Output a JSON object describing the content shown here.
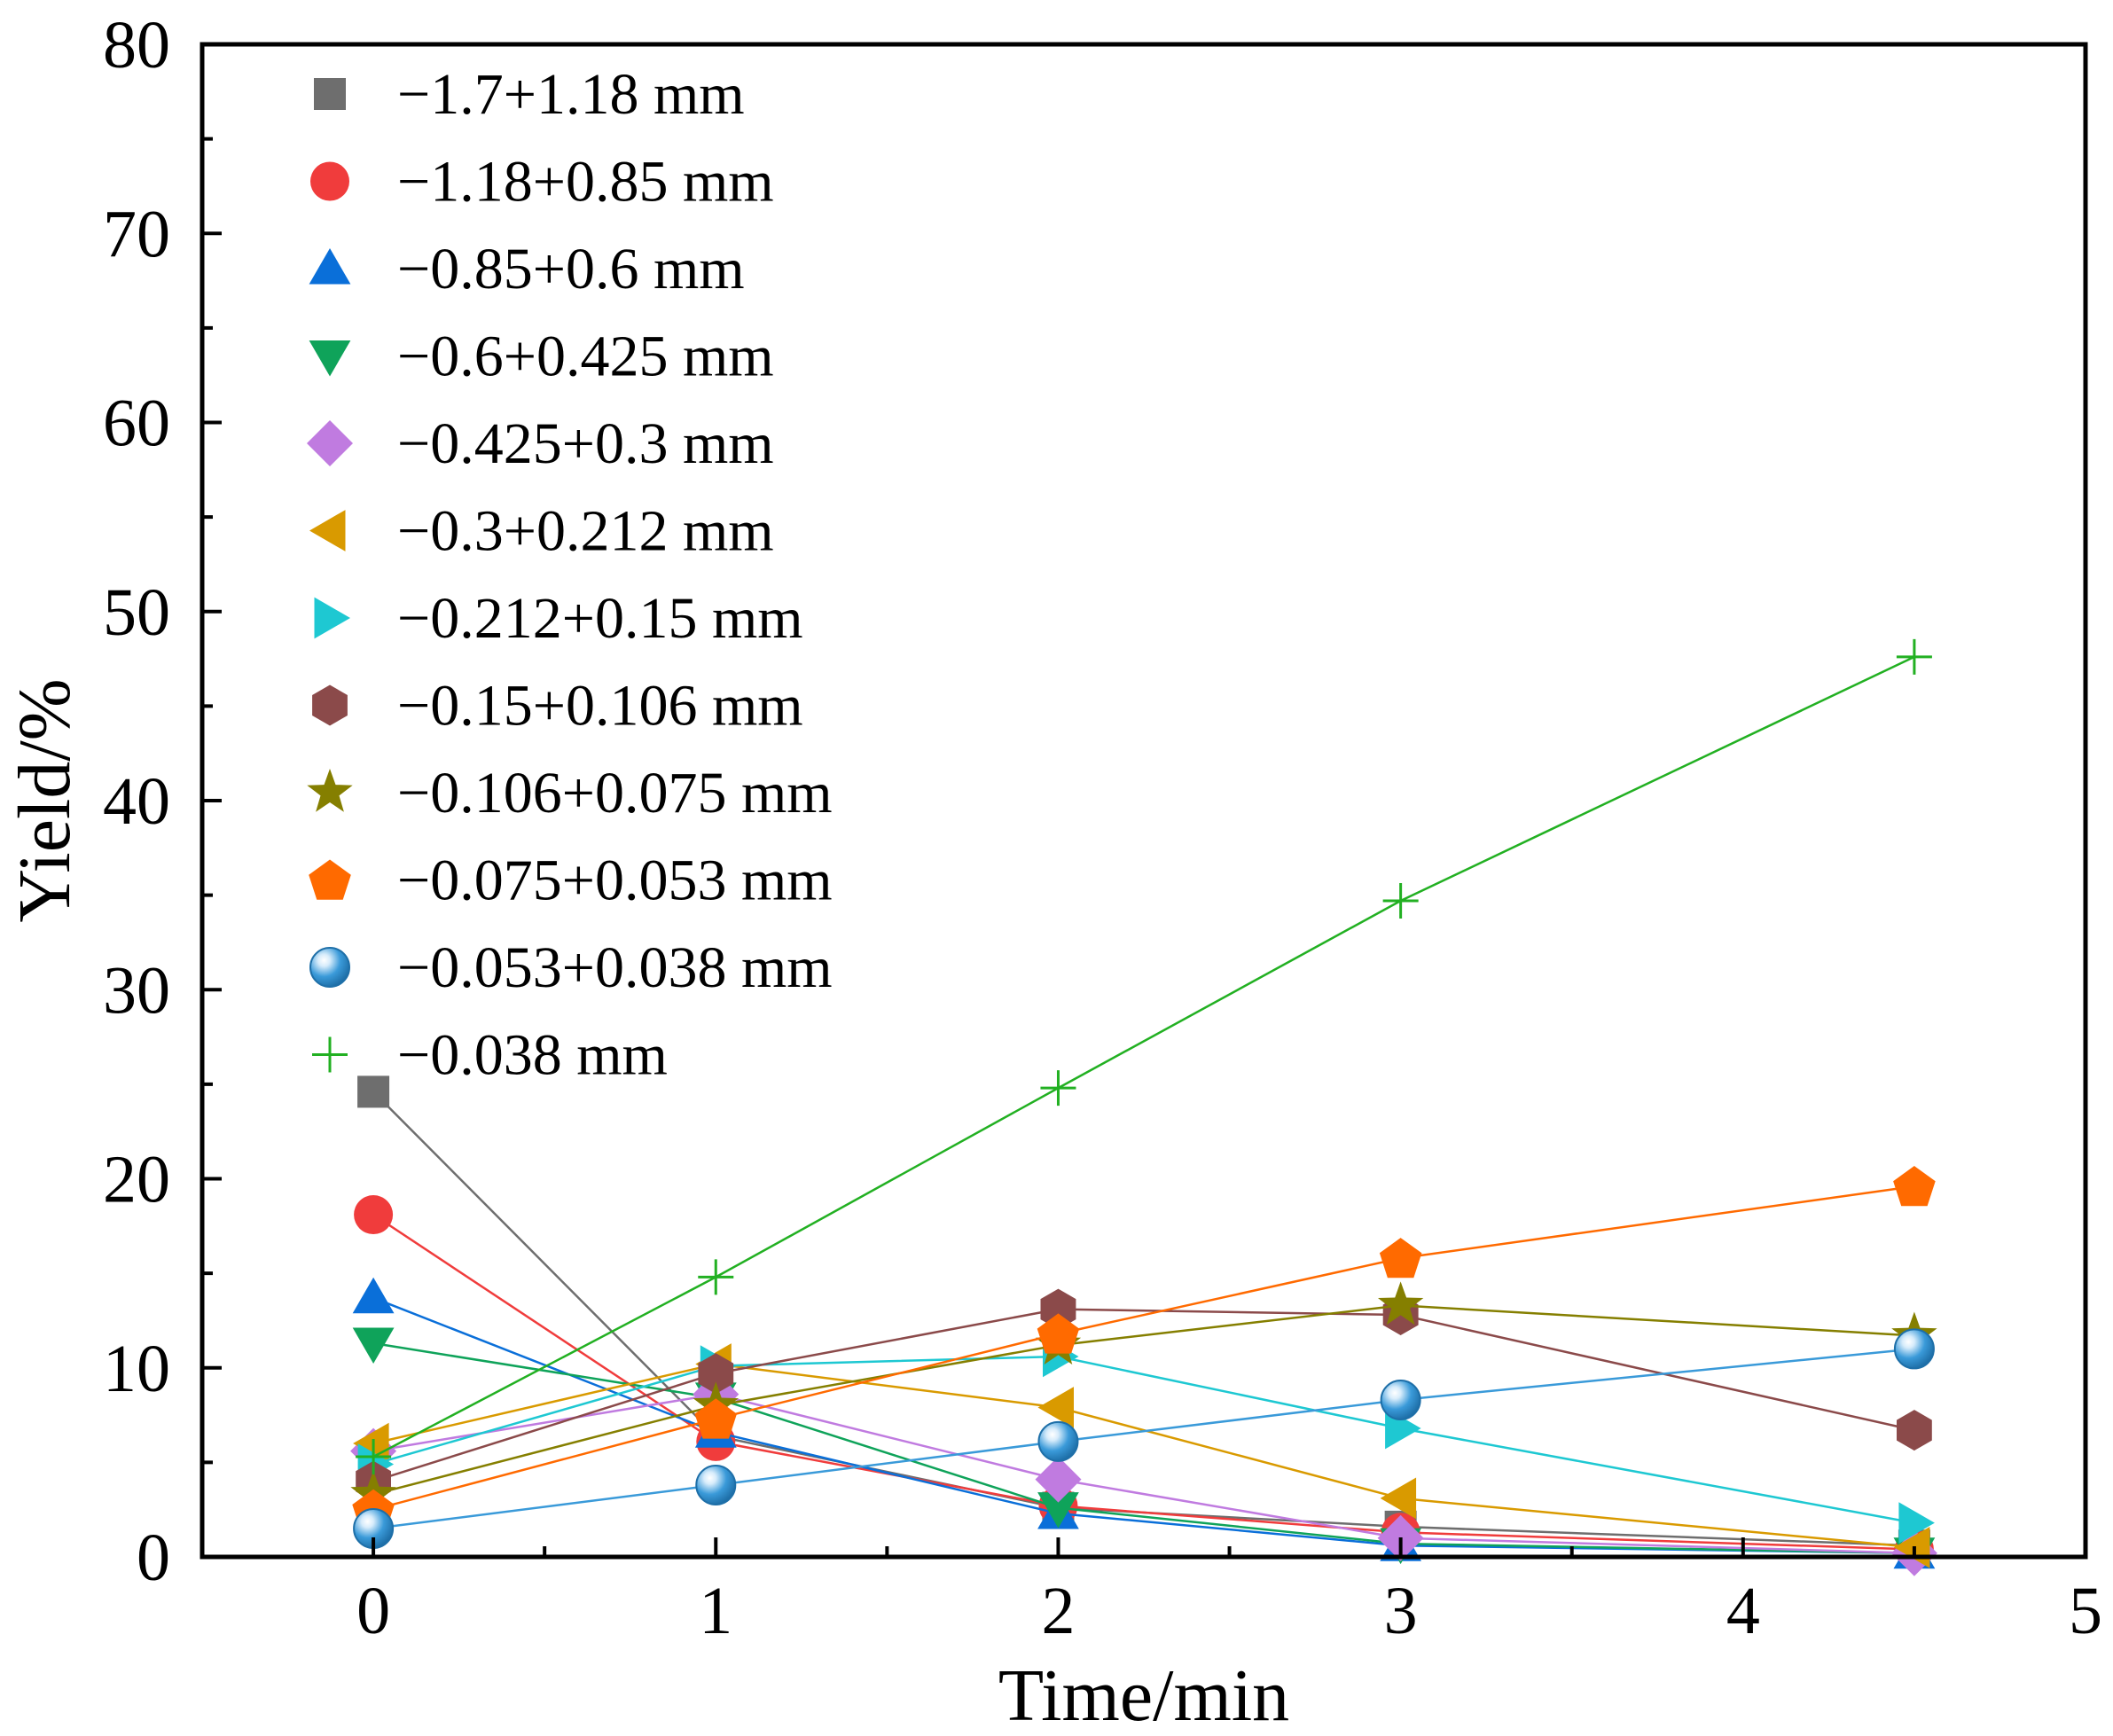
{
  "chart_data": {
    "type": "line",
    "title": "",
    "xlabel": "Time/min",
    "ylabel": "Yield/%",
    "xlim": [
      -0.5,
      5
    ],
    "ylim": [
      0,
      80
    ],
    "xticks": [
      0,
      1,
      2,
      3,
      4,
      5
    ],
    "xtick_labels": [
      "0",
      "1",
      "2",
      "3",
      "4",
      "5"
    ],
    "yticks": [
      0,
      10,
      20,
      30,
      40,
      50,
      60,
      70,
      80
    ],
    "ytick_labels": [
      "0",
      "10",
      "20",
      "30",
      "40",
      "50",
      "60",
      "70",
      "80"
    ],
    "grid": false,
    "legend_position": "top-left",
    "x": [
      0,
      1,
      2,
      3,
      4.5
    ],
    "series": [
      {
        "name": "−1.7+1.18 mm",
        "marker": "square",
        "color": "#6e6e6e",
        "values": [
          24.6,
          6.4,
          2.6,
          1.6,
          0.6
        ]
      },
      {
        "name": "−1.18+0.85 mm",
        "marker": "circle",
        "color": "#f03c3c",
        "values": [
          18.1,
          6.1,
          2.7,
          1.3,
          0.4
        ]
      },
      {
        "name": "−0.85+0.6 mm",
        "marker": "triangle-up",
        "color": "#0a6fd9",
        "values": [
          13.7,
          6.6,
          2.3,
          0.6,
          0.2
        ]
      },
      {
        "name": "−0.6+0.425 mm",
        "marker": "triangle-down",
        "color": "#0fa35a",
        "values": [
          11.3,
          8.4,
          2.6,
          0.7,
          0.2
        ]
      },
      {
        "name": "−0.425+0.3 mm",
        "marker": "diamond",
        "color": "#c07be0",
        "values": [
          5.6,
          8.6,
          4.1,
          1.0,
          0.2
        ]
      },
      {
        "name": "−0.3+0.212 mm",
        "marker": "triangle-left",
        "color": "#d99a00",
        "values": [
          6.0,
          10.2,
          7.9,
          3.1,
          0.5
        ]
      },
      {
        "name": "−0.212+0.15 mm",
        "marker": "triangle-right",
        "color": "#1ec8d2",
        "values": [
          4.9,
          10.1,
          10.6,
          6.8,
          1.8
        ]
      },
      {
        "name": "−0.15+0.106 mm",
        "marker": "hexagon",
        "color": "#8b4a4a",
        "values": [
          4.0,
          9.7,
          13.1,
          12.8,
          6.7
        ]
      },
      {
        "name": "−0.106+0.075 mm",
        "marker": "star",
        "color": "#857f00",
        "values": [
          3.3,
          8.0,
          11.2,
          13.3,
          11.7
        ]
      },
      {
        "name": "−0.075+0.053 mm",
        "marker": "pentagon",
        "color": "#ff6a00",
        "values": [
          2.5,
          7.3,
          11.8,
          15.8,
          19.6
        ]
      },
      {
        "name": "−0.053+0.038 mm",
        "marker": "sphere",
        "color": "#3a9ad9",
        "values": [
          1.5,
          3.8,
          6.1,
          8.3,
          11.0
        ]
      },
      {
        "name": "−0.038 mm",
        "marker": "plus",
        "color": "#22b022",
        "values": [
          5.3,
          14.8,
          24.8,
          34.7,
          47.6
        ]
      }
    ]
  }
}
